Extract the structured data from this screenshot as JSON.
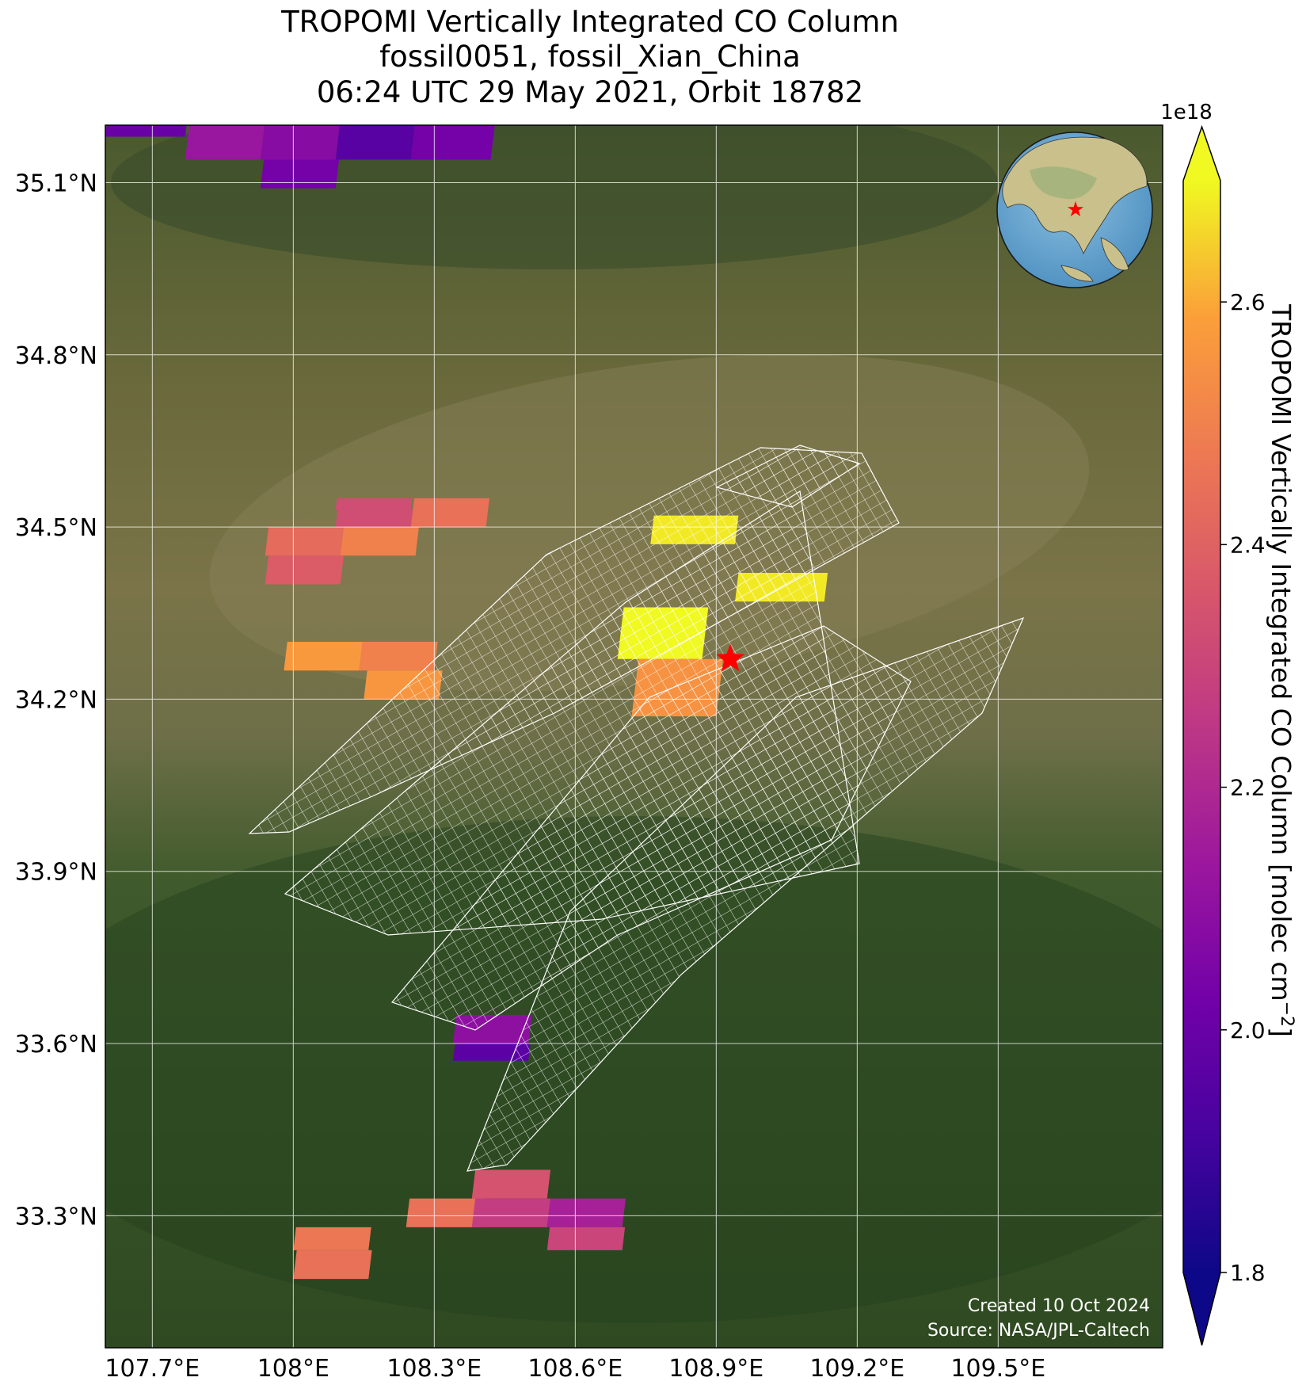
{
  "title": {
    "line1": "TROPOMI Vertically Integrated CO Column",
    "line2": "fossil0051, fossil_Xian_China",
    "line3": "06:24 UTC 29 May 2021, Orbit 18782"
  },
  "map": {
    "extent": {
      "lon_min": 107.6,
      "lon_max": 109.85,
      "lat_min": 33.07,
      "lat_max": 35.2
    },
    "lon_ticks": [
      {
        "value": 107.7,
        "label": "107.7°E"
      },
      {
        "value": 108.0,
        "label": "108°E"
      },
      {
        "value": 108.3,
        "label": "108.3°E"
      },
      {
        "value": 108.6,
        "label": "108.6°E"
      },
      {
        "value": 108.9,
        "label": "108.9°E"
      },
      {
        "value": 109.2,
        "label": "109.2°E"
      },
      {
        "value": 109.5,
        "label": "109.5°E"
      }
    ],
    "lat_ticks": [
      {
        "value": 35.1,
        "label": "35.1°N"
      },
      {
        "value": 34.8,
        "label": "34.8°N"
      },
      {
        "value": 34.5,
        "label": "34.5°N"
      },
      {
        "value": 34.2,
        "label": "34.2°N"
      },
      {
        "value": 33.9,
        "label": "33.9°N"
      },
      {
        "value": 33.6,
        "label": "33.6°N"
      },
      {
        "value": 33.3,
        "label": "33.3°N"
      }
    ],
    "site": {
      "name": "fossil_Xian_China",
      "lon": 108.93,
      "lat": 34.27,
      "marker": "red-star",
      "color": "#ff0000"
    },
    "grid_color": "#ffffff",
    "basemap": "satellite imagery",
    "footer": {
      "created": "Created 10 Oct 2024",
      "source": "Source: NASA/JPL-Caltech"
    },
    "inset_globe": {
      "center_region": "East Asia",
      "marker": "red-star"
    }
  },
  "pixels": [
    {
      "lon_min": 107.6,
      "lon_max": 107.77,
      "lat_min": 35.18,
      "lat_max": 35.2,
      "value": 2.0
    },
    {
      "lon_min": 107.77,
      "lon_max": 107.93,
      "lat_min": 35.14,
      "lat_max": 35.2,
      "value": 2.13
    },
    {
      "lon_min": 107.93,
      "lon_max": 108.09,
      "lat_min": 35.14,
      "lat_max": 35.2,
      "value": 2.08
    },
    {
      "lon_min": 107.93,
      "lon_max": 108.09,
      "lat_min": 35.09,
      "lat_max": 35.14,
      "value": 2.03
    },
    {
      "lon_min": 108.09,
      "lon_max": 108.25,
      "lat_min": 35.14,
      "lat_max": 35.2,
      "value": 1.96
    },
    {
      "lon_min": 108.25,
      "lon_max": 108.42,
      "lat_min": 35.14,
      "lat_max": 35.2,
      "value": 2.03
    },
    {
      "lon_min": 108.09,
      "lon_max": 108.25,
      "lat_min": 34.53,
      "lat_max": 34.55,
      "value": 2.33
    },
    {
      "lon_min": 108.25,
      "lon_max": 108.41,
      "lat_min": 34.5,
      "lat_max": 34.55,
      "value": 2.45
    },
    {
      "lon_min": 107.94,
      "lon_max": 108.1,
      "lat_min": 34.45,
      "lat_max": 34.5,
      "value": 2.43
    },
    {
      "lon_min": 108.1,
      "lon_max": 108.26,
      "lat_min": 34.45,
      "lat_max": 34.5,
      "value": 2.5
    },
    {
      "lon_min": 107.94,
      "lon_max": 108.1,
      "lat_min": 34.4,
      "lat_max": 34.45,
      "value": 2.38
    },
    {
      "lon_min": 108.09,
      "lon_max": 108.25,
      "lat_min": 34.5,
      "lat_max": 34.53,
      "value": 2.33
    },
    {
      "lon_min": 107.98,
      "lon_max": 108.14,
      "lat_min": 34.25,
      "lat_max": 34.3,
      "value": 2.57
    },
    {
      "lon_min": 108.14,
      "lon_max": 108.3,
      "lat_min": 34.25,
      "lat_max": 34.3,
      "value": 2.5
    },
    {
      "lon_min": 108.15,
      "lon_max": 108.31,
      "lat_min": 34.2,
      "lat_max": 34.25,
      "value": 2.56
    },
    {
      "lon_min": 108.76,
      "lon_max": 108.94,
      "lat_min": 34.47,
      "lat_max": 34.52,
      "value": 2.68
    },
    {
      "lon_min": 108.94,
      "lon_max": 109.13,
      "lat_min": 34.37,
      "lat_max": 34.42,
      "value": 2.68
    },
    {
      "lon_min": 108.69,
      "lon_max": 108.87,
      "lat_min": 34.27,
      "lat_max": 34.36,
      "value": 2.7
    },
    {
      "lon_min": 108.72,
      "lon_max": 108.9,
      "lat_min": 34.17,
      "lat_max": 34.27,
      "value": 2.55
    },
    {
      "lon_min": 108.34,
      "lon_max": 108.5,
      "lat_min": 33.6,
      "lat_max": 33.65,
      "value": 2.1
    },
    {
      "lon_min": 108.34,
      "lon_max": 108.5,
      "lat_min": 33.57,
      "lat_max": 33.6,
      "value": 1.97
    },
    {
      "lon_min": 108.38,
      "lon_max": 108.54,
      "lat_min": 33.33,
      "lat_max": 33.38,
      "value": 2.35
    },
    {
      "lon_min": 108.24,
      "lon_max": 108.4,
      "lat_min": 33.28,
      "lat_max": 33.33,
      "value": 2.45
    },
    {
      "lon_min": 108.38,
      "lon_max": 108.54,
      "lat_min": 33.28,
      "lat_max": 33.33,
      "value": 2.27
    },
    {
      "lon_min": 108.54,
      "lon_max": 108.7,
      "lat_min": 33.28,
      "lat_max": 33.33,
      "value": 2.17
    },
    {
      "lon_min": 108.54,
      "lon_max": 108.7,
      "lat_min": 33.24,
      "lat_max": 33.28,
      "value": 2.3
    },
    {
      "lon_min": 108.0,
      "lon_max": 108.16,
      "lat_min": 33.24,
      "lat_max": 33.28,
      "value": 2.47
    },
    {
      "lon_min": 108.0,
      "lon_max": 108.16,
      "lat_min": 33.19,
      "lat_max": 33.24,
      "value": 2.45
    }
  ],
  "colorbar": {
    "cmap": "plasma",
    "vmin": 1.8,
    "vmax": 2.7,
    "ticks": [
      "1.8",
      "2.0",
      "2.2",
      "2.4",
      "2.6"
    ],
    "tick_values": [
      1.8,
      2.0,
      2.2,
      2.4,
      2.6
    ],
    "exponent_label": "1e18",
    "label": "TROPOMI Vertically Integrated CO Column [molec cm",
    "label_sup": "−2",
    "label_end": "]",
    "extend": "both"
  }
}
